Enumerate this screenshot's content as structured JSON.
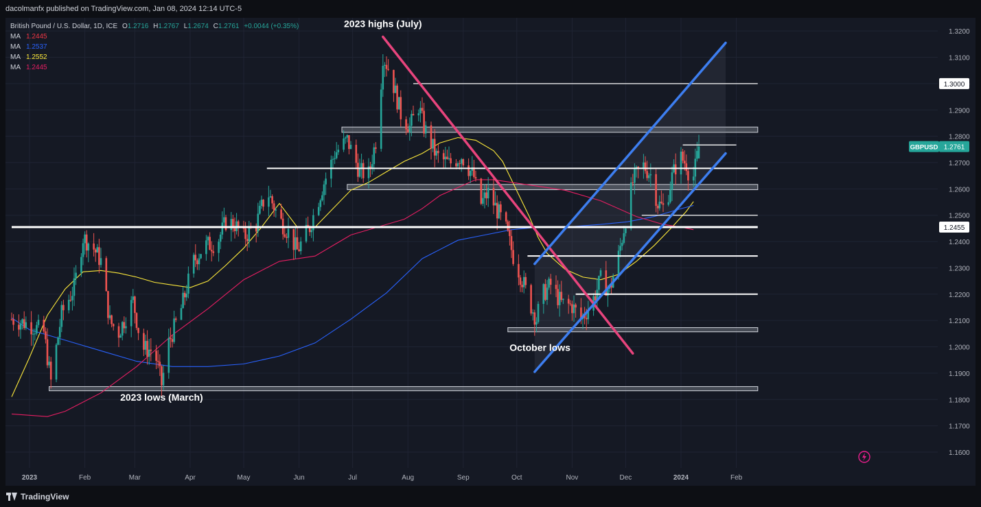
{
  "header": {
    "published": "dacolmanfx published on TradingView.com, Jan 08, 2024 12:14 UTC-5"
  },
  "legend": {
    "symbol": "British Pound / U.S. Dollar, 1D, ICE",
    "ohlc": [
      {
        "label": "O",
        "value": "1.2716"
      },
      {
        "label": "H",
        "value": "1.2767"
      },
      {
        "label": "L",
        "value": "1.2674"
      },
      {
        "label": "C",
        "value": "1.2761"
      }
    ],
    "change": "+0.0044 (+0.35%)",
    "ma": [
      {
        "label": "MA",
        "value": "1.2445",
        "color": "#f23645"
      },
      {
        "label": "MA",
        "value": "1.2537",
        "color": "#2962ff"
      },
      {
        "label": "MA",
        "value": "1.2552",
        "color": "#ffeb3b"
      },
      {
        "label": "MA",
        "value": "1.2445",
        "color": "#e91e63"
      }
    ]
  },
  "chart_data": {
    "type": "candlestick",
    "symbol": "GBPUSD",
    "timeframe": "1D",
    "ylim": [
      1.154,
      1.325
    ],
    "y_ticks": [
      "1.3200",
      "1.3100",
      "1.3000",
      "1.2900",
      "1.2800",
      "1.2700",
      "1.2600",
      "1.2500",
      "1.2400",
      "1.2300",
      "1.2200",
      "1.2100",
      "1.2000",
      "1.1900",
      "1.1800",
      "1.1700",
      "1.1600"
    ],
    "y_tick_values": [
      1.32,
      1.31,
      1.3,
      1.29,
      1.28,
      1.27,
      1.26,
      1.25,
      1.24,
      1.23,
      1.22,
      1.21,
      1.2,
      1.19,
      1.18,
      1.17,
      1.16
    ],
    "x_ticks": [
      "2023",
      "Feb",
      "Mar",
      "Apr",
      "May",
      "Jun",
      "Jul",
      "Aug",
      "Sep",
      "Oct",
      "Nov",
      "Dec",
      "2024",
      "Feb"
    ],
    "x_tick_days": [
      0,
      31,
      59,
      90,
      120,
      151,
      181,
      212,
      243,
      273,
      304,
      334,
      365,
      396
    ],
    "last_price": {
      "label": "GBPUSD",
      "value": "1.2761",
      "y": 1.2761
    },
    "highlight_levels": [
      {
        "label": "1.3000",
        "y": 1.3
      },
      {
        "label": "1.2455",
        "y": 1.2455
      }
    ],
    "annotations": [
      {
        "text": "2023 highs (July)",
        "day": 198,
        "y": 1.3215
      },
      {
        "text": "October lows",
        "day": 286,
        "y": 1.1985
      },
      {
        "text": "2023 lows (March)",
        "day": 74,
        "y": 1.1795
      }
    ],
    "horizontal_lines": [
      {
        "y": 1.2455,
        "d0": -10,
        "d1": 408,
        "style": "thick"
      },
      {
        "y": 1.3,
        "d0": 215,
        "d1": 408,
        "style": "thin"
      },
      {
        "y": 1.2678,
        "d0": 133,
        "d1": 408,
        "style": "medium"
      },
      {
        "y": 1.2345,
        "d0": 279,
        "d1": 408,
        "style": "medium"
      },
      {
        "y": 1.22,
        "d0": 306,
        "d1": 408,
        "style": "medium"
      },
      {
        "y": 1.25,
        "d0": 343,
        "d1": 408,
        "style": "thin"
      },
      {
        "y": 1.2767,
        "d0": 366,
        "d1": 396,
        "style": "thin"
      }
    ],
    "zones": [
      {
        "y0": 1.2815,
        "y1": 1.2835,
        "d0": 175,
        "d1": 408
      },
      {
        "y0": 1.2597,
        "y1": 1.2617,
        "d0": 178,
        "d1": 408
      },
      {
        "y0": 1.2057,
        "y1": 1.2073,
        "d0": 268,
        "d1": 408
      },
      {
        "y0": 1.1833,
        "y1": 1.1849,
        "d0": 11,
        "d1": 408
      }
    ],
    "trendlines": [
      {
        "name": "downtrend",
        "color": "#e8447d",
        "points": [
          [
            198,
            1.3178
          ],
          [
            338,
            1.1975
          ]
        ]
      },
      {
        "name": "channel-upper",
        "color": "#3d7ef0",
        "points": [
          [
            283,
            1.2315
          ],
          [
            390,
            1.3155
          ]
        ]
      },
      {
        "name": "channel-lower",
        "color": "#3d7ef0",
        "points": [
          [
            283,
            1.1905
          ],
          [
            390,
            1.2735
          ]
        ]
      }
    ],
    "ma_series": [
      {
        "color": "#ffeb3b",
        "points": [
          [
            -10,
            1.181
          ],
          [
            0,
            1.196
          ],
          [
            10,
            1.212
          ],
          [
            20,
            1.222
          ],
          [
            30,
            1.2285
          ],
          [
            40,
            1.229
          ],
          [
            50,
            1.228
          ],
          [
            60,
            1.2265
          ],
          [
            70,
            1.2245
          ],
          [
            80,
            1.2235
          ],
          [
            90,
            1.2225
          ],
          [
            100,
            1.225
          ],
          [
            110,
            1.231
          ],
          [
            120,
            1.2375
          ],
          [
            130,
            1.2455
          ],
          [
            140,
            1.2545
          ],
          [
            150,
            1.2455
          ],
          [
            160,
            1.2455
          ],
          [
            170,
            1.2525
          ],
          [
            180,
            1.2595
          ],
          [
            190,
            1.2625
          ],
          [
            200,
            1.2665
          ],
          [
            210,
            1.2705
          ],
          [
            220,
            1.2735
          ],
          [
            230,
            1.2775
          ],
          [
            240,
            1.2795
          ],
          [
            250,
            1.2785
          ],
          [
            260,
            1.2745
          ],
          [
            265,
            1.2705
          ],
          [
            270,
            1.2635
          ],
          [
            275,
            1.2565
          ],
          [
            280,
            1.2495
          ],
          [
            285,
            1.2415
          ],
          [
            290,
            1.2355
          ],
          [
            300,
            1.2295
          ],
          [
            310,
            1.2265
          ],
          [
            320,
            1.2255
          ],
          [
            330,
            1.2275
          ],
          [
            340,
            1.2325
          ],
          [
            350,
            1.2385
          ],
          [
            360,
            1.2455
          ],
          [
            368,
            1.2515
          ],
          [
            372,
            1.2552
          ]
        ]
      },
      {
        "color": "#2962ff",
        "points": [
          [
            -10,
            1.211
          ],
          [
            0,
            1.2065
          ],
          [
            20,
            1.2025
          ],
          [
            40,
            1.1985
          ],
          [
            60,
            1.1945
          ],
          [
            80,
            1.1925
          ],
          [
            100,
            1.1925
          ],
          [
            120,
            1.1935
          ],
          [
            140,
            1.1965
          ],
          [
            160,
            1.2015
          ],
          [
            180,
            1.2105
          ],
          [
            200,
            1.2205
          ],
          [
            220,
            1.2335
          ],
          [
            240,
            1.2405
          ],
          [
            255,
            1.2425
          ],
          [
            270,
            1.2445
          ],
          [
            285,
            1.2455
          ],
          [
            300,
            1.2455
          ],
          [
            320,
            1.2465
          ],
          [
            335,
            1.2475
          ],
          [
            350,
            1.2495
          ],
          [
            365,
            1.2525
          ],
          [
            372,
            1.2537
          ]
        ]
      },
      {
        "color": "#e91e63",
        "points": [
          [
            -10,
            1.1745
          ],
          [
            10,
            1.1735
          ],
          [
            20,
            1.1755
          ],
          [
            40,
            1.1825
          ],
          [
            60,
            1.1925
          ],
          [
            80,
            1.2045
          ],
          [
            100,
            1.2145
          ],
          [
            120,
            1.2255
          ],
          [
            140,
            1.2325
          ],
          [
            160,
            1.2345
          ],
          [
            180,
            1.2425
          ],
          [
            200,
            1.2465
          ],
          [
            210,
            1.2485
          ],
          [
            220,
            1.2525
          ],
          [
            230,
            1.2575
          ],
          [
            240,
            1.2605
          ],
          [
            250,
            1.2635
          ],
          [
            260,
            1.2635
          ],
          [
            270,
            1.2625
          ],
          [
            280,
            1.2615
          ],
          [
            290,
            1.2605
          ],
          [
            300,
            1.2595
          ],
          [
            320,
            1.2555
          ],
          [
            340,
            1.2495
          ],
          [
            355,
            1.2465
          ],
          [
            365,
            1.2455
          ],
          [
            372,
            1.2445
          ]
        ]
      }
    ],
    "price_path": [
      [
        -10,
        1.2105
      ],
      [
        0,
        1.2085
      ],
      [
        8,
        1.2055
      ],
      [
        12,
        1.1868
      ],
      [
        18,
        1.2125
      ],
      [
        25,
        1.2225
      ],
      [
        30,
        1.2415
      ],
      [
        35,
        1.2385
      ],
      [
        40,
        1.2325
      ],
      [
        45,
        1.2095
      ],
      [
        50,
        1.2055
      ],
      [
        58,
        1.2175
      ],
      [
        63,
        1.1995
      ],
      [
        70,
        1.1985
      ],
      [
        74,
        1.1858
      ],
      [
        78,
        1.2015
      ],
      [
        85,
        1.2145
      ],
      [
        92,
        1.2325
      ],
      [
        98,
        1.2385
      ],
      [
        105,
        1.2395
      ],
      [
        110,
        1.2475
      ],
      [
        115,
        1.2465
      ],
      [
        120,
        1.2415
      ],
      [
        127,
        1.2465
      ],
      [
        133,
        1.2595
      ],
      [
        140,
        1.2485
      ],
      [
        145,
        1.2435
      ],
      [
        150,
        1.2365
      ],
      [
        157,
        1.2455
      ],
      [
        164,
        1.2605
      ],
      [
        171,
        1.2735
      ],
      [
        178,
        1.2785
      ],
      [
        185,
        1.2665
      ],
      [
        190,
        1.2655
      ],
      [
        195,
        1.2815
      ],
      [
        198,
        1.3105
      ],
      [
        202,
        1.3045
      ],
      [
        208,
        1.2885
      ],
      [
        213,
        1.2835
      ],
      [
        218,
        1.2915
      ],
      [
        221,
        1.2835
      ],
      [
        228,
        1.2725
      ],
      [
        235,
        1.2695
      ],
      [
        242,
        1.2725
      ],
      [
        249,
        1.2645
      ],
      [
        252,
        1.2535
      ],
      [
        257,
        1.2585
      ],
      [
        263,
        1.2505
      ],
      [
        267,
        1.2445
      ],
      [
        271,
        1.2345
      ],
      [
        276,
        1.2255
      ],
      [
        281,
        1.2155
      ],
      [
        284,
        1.2105
      ],
      [
        287,
        1.2195
      ],
      [
        292,
        1.2235
      ],
      [
        298,
        1.2165
      ],
      [
        304,
        1.2155
      ],
      [
        309,
        1.2105
      ],
      [
        315,
        1.2165
      ],
      [
        320,
        1.2255
      ],
      [
        325,
        1.2215
      ],
      [
        330,
        1.2345
      ],
      [
        334,
        1.2485
      ],
      [
        338,
        1.2625
      ],
      [
        343,
        1.2695
      ],
      [
        348,
        1.2655
      ],
      [
        352,
        1.2545
      ],
      [
        356,
        1.2525
      ],
      [
        360,
        1.2645
      ],
      [
        364,
        1.2725
      ],
      [
        368,
        1.2695
      ],
      [
        371,
        1.2615
      ],
      [
        373,
        1.2682
      ],
      [
        375,
        1.2761
      ]
    ]
  }
}
